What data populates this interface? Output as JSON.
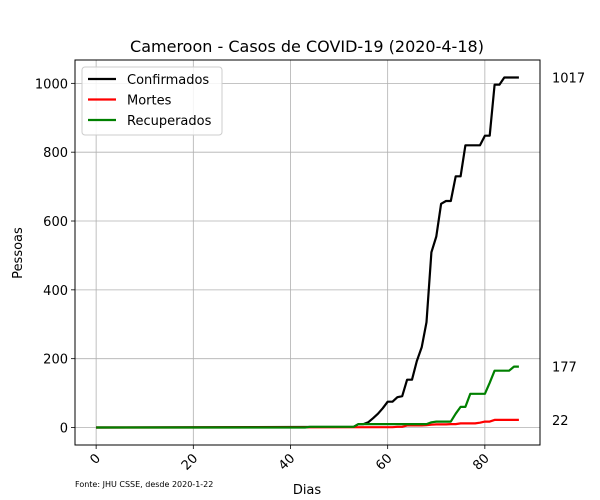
{
  "chart_data": {
    "type": "line",
    "title": "Cameroon - Casos de COVID-19 (2020-4-18)",
    "xlabel": "Dias",
    "ylabel": "Pessoas",
    "xlim": [
      -4.35,
      91.35
    ],
    "ylim": [
      -50.85,
      1067.85
    ],
    "xticks": [
      0,
      20,
      40,
      60,
      80
    ],
    "yticks": [
      0,
      200,
      400,
      600,
      800,
      1000
    ],
    "grid": true,
    "legend_position": "top-left",
    "source_note": "Fonte: JHU CSSE, desde 2020-1-22",
    "series": [
      {
        "name": "Confirmados",
        "color": "#000000",
        "x": [
          0,
          53,
          54,
          55,
          56,
          57,
          58,
          59,
          60,
          61,
          62,
          63,
          64,
          65,
          66,
          67,
          68,
          69,
          70,
          71,
          72,
          73,
          74,
          75,
          76,
          77,
          78,
          79,
          80,
          81,
          82,
          83,
          84,
          85,
          86,
          87
        ],
        "y": [
          0,
          2,
          10,
          10,
          15,
          27,
          40,
          56,
          75,
          75,
          88,
          91,
          139,
          139,
          193,
          233,
          306,
          509,
          555,
          650,
          658,
          658,
          730,
          730,
          820,
          820,
          820,
          820,
          848,
          848,
          996,
          996,
          1017,
          1017,
          1017,
          1017
        ],
        "end_label": "1017"
      },
      {
        "name": "Mortes",
        "color": "#ff0000",
        "x": [
          0,
          61,
          62,
          63,
          64,
          65,
          66,
          67,
          68,
          69,
          70,
          71,
          72,
          73,
          74,
          75,
          76,
          77,
          78,
          79,
          80,
          81,
          82,
          83,
          84,
          85,
          86,
          87
        ],
        "y": [
          0,
          1,
          2,
          2,
          6,
          6,
          6,
          6,
          7,
          8,
          9,
          9,
          9,
          10,
          10,
          12,
          12,
          12,
          12,
          14,
          17,
          17,
          22,
          22,
          22,
          22,
          22,
          22
        ],
        "end_label": "22"
      },
      {
        "name": "Recuperados",
        "color": "#008000",
        "x": [
          0,
          43,
          44,
          53,
          54,
          55,
          56,
          57,
          58,
          59,
          60,
          61,
          62,
          63,
          64,
          65,
          66,
          67,
          68,
          69,
          70,
          71,
          72,
          73,
          74,
          75,
          76,
          77,
          78,
          79,
          80,
          81,
          82,
          83,
          84,
          85,
          86,
          87
        ],
        "y": [
          0,
          0,
          2,
          2,
          10,
          10,
          10,
          10,
          10,
          10,
          10,
          10,
          10,
          10,
          10,
          10,
          10,
          10,
          10,
          15,
          17,
          17,
          17,
          17,
          40,
          60,
          60,
          98,
          98,
          98,
          98,
          130,
          165,
          165,
          165,
          165,
          177,
          177
        ],
        "end_label": "177"
      }
    ]
  }
}
